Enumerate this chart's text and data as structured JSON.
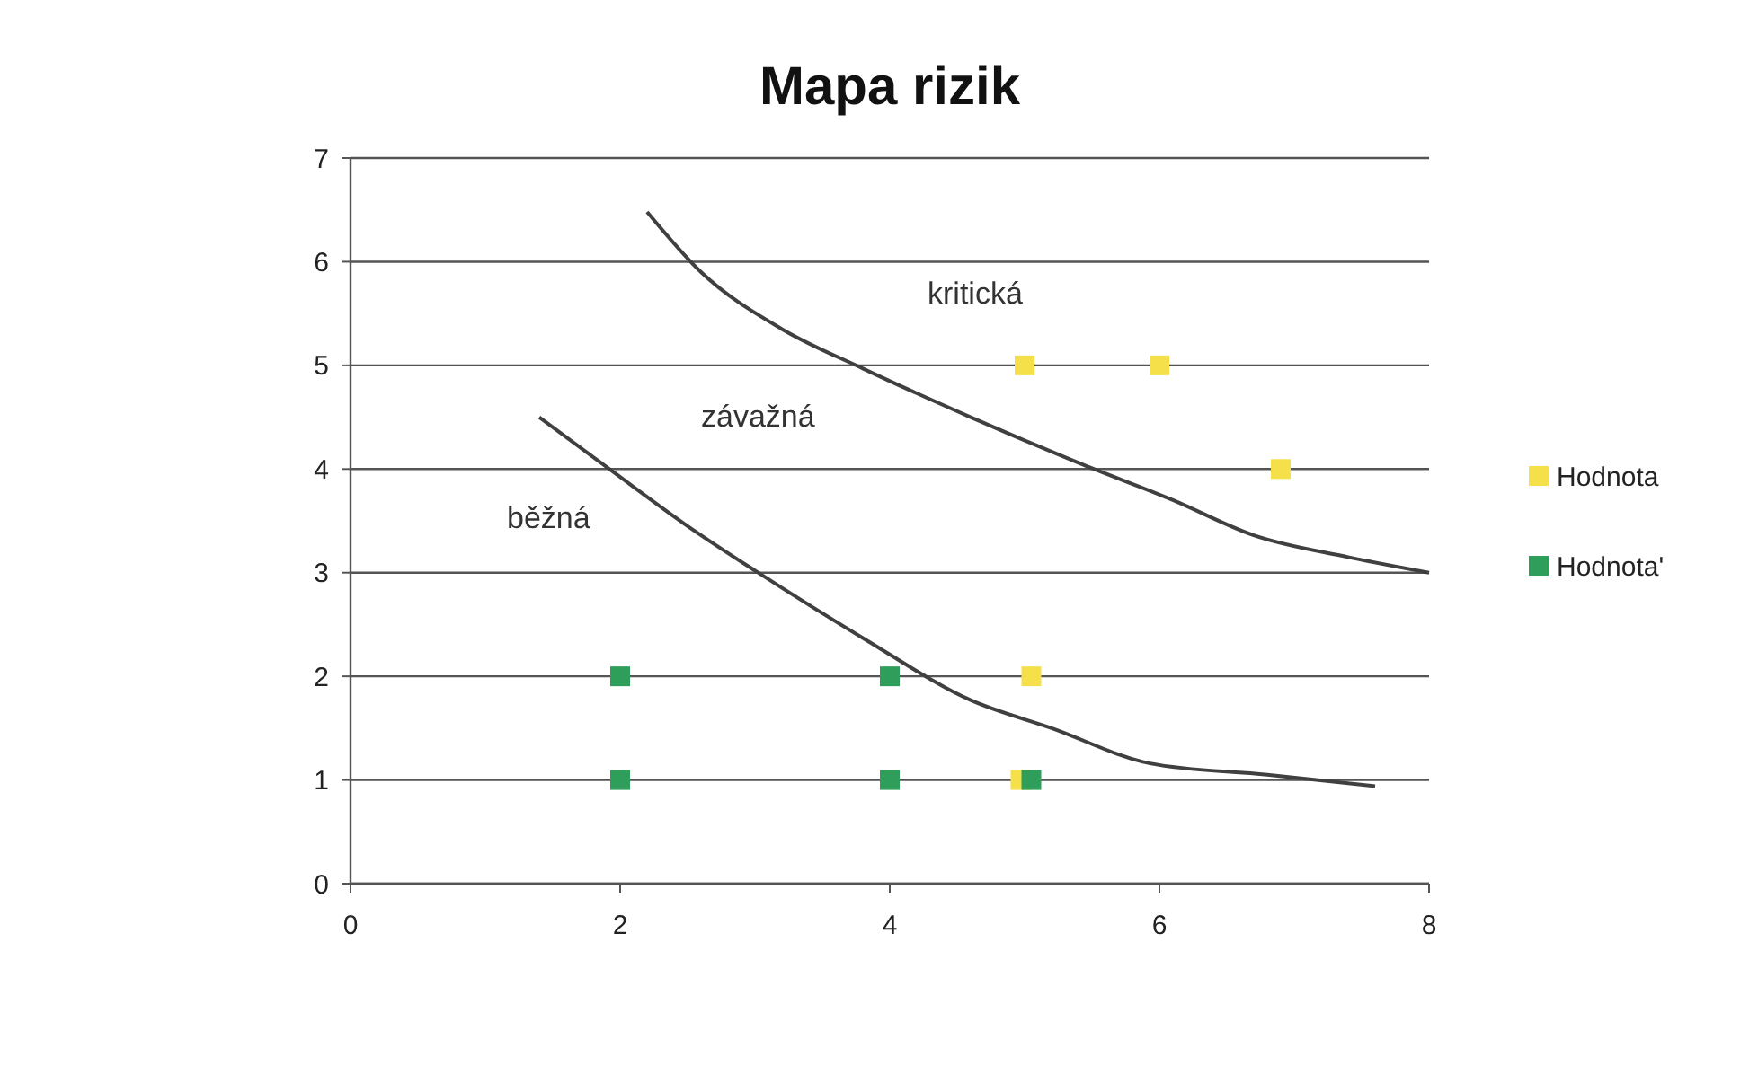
{
  "chart_data": {
    "type": "scatter",
    "title": "Mapa rizik",
    "xlim": [
      0,
      8
    ],
    "ylim": [
      0,
      7
    ],
    "xticks": [
      0,
      2,
      4,
      6,
      8
    ],
    "yticks": [
      0,
      1,
      2,
      3,
      4,
      5,
      6,
      7
    ],
    "grid": "y",
    "legend": "right",
    "marker": "square",
    "series": [
      {
        "name": "Hodnota",
        "color": "#f5e04a",
        "x": [
          5,
          6,
          6.9,
          5.05,
          4.97
        ],
        "values": [
          5,
          5,
          4,
          2,
          1
        ]
      },
      {
        "name": "Hodnota'",
        "color": "#2e9e5a",
        "x": [
          2,
          4,
          2,
          4,
          5.05
        ],
        "values": [
          2,
          2,
          1,
          1,
          1
        ]
      },
      {
        "type": "line",
        "color": "#404040",
        "marker": "none",
        "x": [
          2.2,
          2.6,
          3.2,
          3.8,
          4.6,
          5.4,
          6.1,
          6.7,
          7.4,
          8
        ],
        "values": [
          6.48,
          5.9,
          5.35,
          4.97,
          4.5,
          4.06,
          3.7,
          3.36,
          3.15,
          3.0
        ]
      },
      {
        "type": "line",
        "color": "#404040",
        "marker": "none",
        "x": [
          1.4,
          1.93,
          2.5,
          3.0,
          3.8,
          4.6,
          5.2,
          5.93,
          6.8,
          7.6
        ],
        "values": [
          4.5,
          3.99,
          3.45,
          3.02,
          2.37,
          1.77,
          1.5,
          1.16,
          1.05,
          0.94
        ]
      }
    ],
    "annotations": [
      "kritická",
      "závažná",
      "běžná"
    ]
  }
}
